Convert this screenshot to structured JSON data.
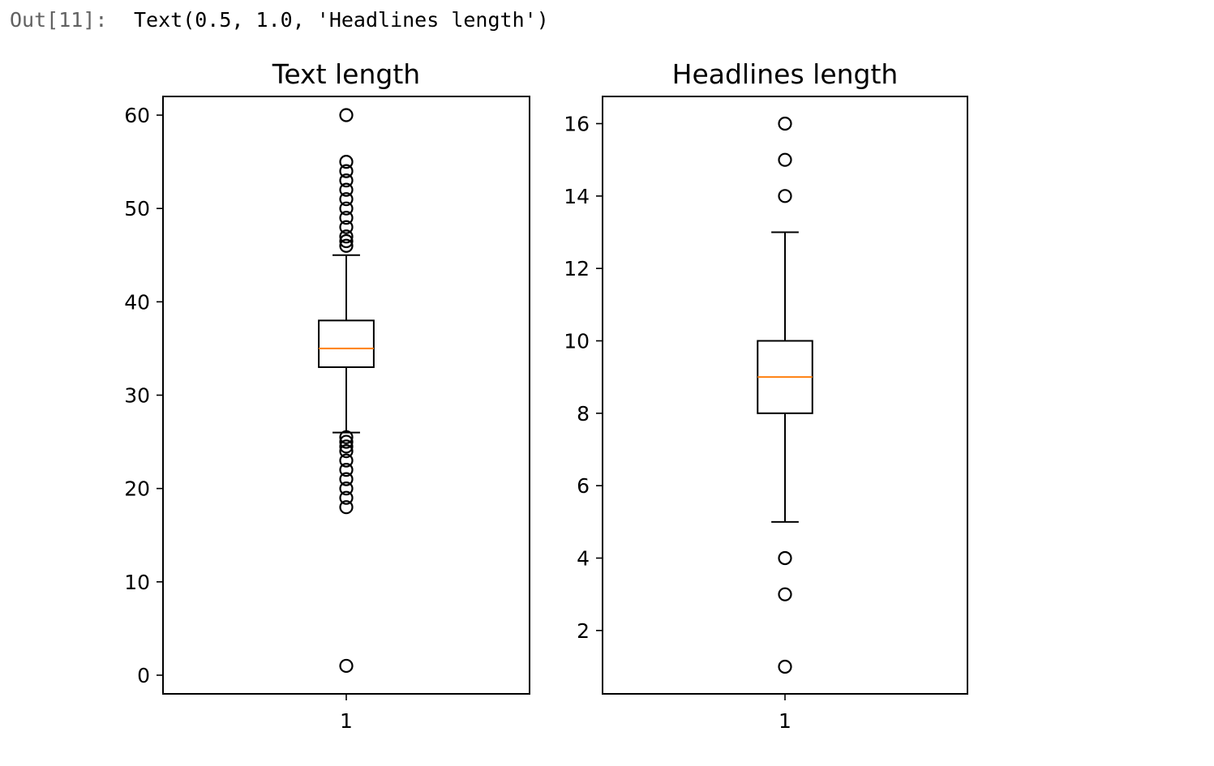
{
  "cell": {
    "prompt": "Out[11]:",
    "output": "Text(0.5, 1.0, 'Headlines length')"
  },
  "colors": {
    "box": "#000000",
    "median": "#ff7f0e",
    "axes": "#000000",
    "text": "#000000"
  },
  "chart_data": [
    {
      "type": "boxplot",
      "title": "Text length",
      "xlabel": "",
      "ylabel": "",
      "categories": [
        "1"
      ],
      "ylim": [
        -2,
        62
      ],
      "yticks": [
        0,
        10,
        20,
        30,
        40,
        50,
        60
      ],
      "grid": false,
      "box": {
        "whisker_low": 26,
        "q1": 33,
        "median": 35,
        "q3": 38,
        "whisker_high": 45
      },
      "outliers": [
        1,
        18,
        19,
        20,
        21,
        22,
        23,
        24,
        24.5,
        25,
        25.5,
        46,
        46.5,
        47,
        48,
        49,
        50,
        51,
        52,
        53,
        54,
        55,
        60
      ]
    },
    {
      "type": "boxplot",
      "title": "Headlines length",
      "xlabel": "",
      "ylabel": "",
      "categories": [
        "1"
      ],
      "ylim": [
        0.25,
        16.75
      ],
      "yticks": [
        2,
        4,
        6,
        8,
        10,
        12,
        14,
        16
      ],
      "grid": false,
      "box": {
        "whisker_low": 5,
        "q1": 8,
        "median": 9,
        "q3": 10,
        "whisker_high": 13
      },
      "outliers": [
        1,
        3,
        4,
        14,
        15,
        16
      ]
    }
  ]
}
